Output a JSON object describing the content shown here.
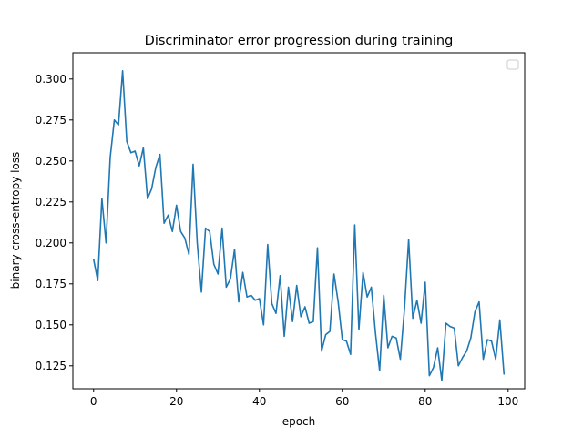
{
  "chart_data": {
    "type": "line",
    "title": "Discriminator error progression during training",
    "xlabel": "epoch",
    "ylabel": "binary cross-entropy loss",
    "xlim": [
      -5,
      104
    ],
    "ylim": [
      0.111,
      0.316
    ],
    "xticks": [
      0,
      20,
      40,
      60,
      80,
      100
    ],
    "yticks": [
      0.125,
      0.15,
      0.175,
      0.2,
      0.225,
      0.25,
      0.275,
      0.3
    ],
    "ytick_labels": [
      "0.125",
      "0.150",
      "0.175",
      "0.200",
      "0.225",
      "0.250",
      "0.275",
      "0.300"
    ],
    "grid": false,
    "legend": "upper-right, empty",
    "line_color": "#1f77b4",
    "series": [
      {
        "x": [
          0,
          1,
          2,
          3,
          4,
          5,
          6,
          7,
          8,
          9,
          10,
          11,
          12,
          13,
          14,
          15,
          16,
          17,
          18,
          19,
          20,
          21,
          22,
          23,
          24,
          25,
          26,
          27,
          28,
          29,
          30,
          31,
          32,
          33,
          34,
          35,
          36,
          37,
          38,
          39,
          40,
          41,
          42,
          43,
          44,
          45,
          46,
          47,
          48,
          49,
          50,
          51,
          52,
          53,
          54,
          55,
          56,
          57,
          58,
          59,
          60,
          61,
          62,
          63,
          64,
          65,
          66,
          67,
          68,
          69,
          70,
          71,
          72,
          73,
          74,
          75,
          76,
          77,
          78,
          79,
          80,
          81,
          82,
          83,
          84,
          85,
          86,
          87,
          88,
          89,
          90,
          91,
          92,
          93,
          94,
          95,
          96,
          97,
          98,
          99
        ],
        "y": [
          0.19,
          0.177,
          0.227,
          0.2,
          0.252,
          0.275,
          0.272,
          0.305,
          0.262,
          0.255,
          0.256,
          0.247,
          0.258,
          0.227,
          0.233,
          0.246,
          0.254,
          0.212,
          0.217,
          0.207,
          0.223,
          0.207,
          0.203,
          0.193,
          0.248,
          0.2,
          0.17,
          0.209,
          0.207,
          0.187,
          0.181,
          0.209,
          0.173,
          0.178,
          0.196,
          0.164,
          0.182,
          0.167,
          0.168,
          0.165,
          0.166,
          0.15,
          0.199,
          0.163,
          0.157,
          0.18,
          0.143,
          0.173,
          0.152,
          0.174,
          0.155,
          0.161,
          0.151,
          0.152,
          0.197,
          0.134,
          0.144,
          0.146,
          0.181,
          0.164,
          0.141,
          0.14,
          0.132,
          0.211,
          0.147,
          0.182,
          0.167,
          0.173,
          0.145,
          0.122,
          0.168,
          0.136,
          0.143,
          0.142,
          0.129,
          0.16,
          0.202,
          0.154,
          0.165,
          0.151,
          0.176,
          0.119,
          0.124,
          0.136,
          0.116,
          0.151,
          0.149,
          0.148,
          0.125,
          0.13,
          0.134,
          0.142,
          0.158,
          0.164,
          0.129,
          0.141,
          0.14,
          0.129,
          0.153,
          0.12
        ]
      }
    ]
  }
}
